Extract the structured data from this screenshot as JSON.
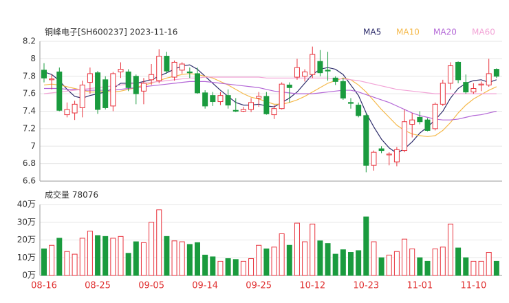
{
  "chart_data": [
    {
      "type": "candlestick",
      "title": "铜峰电子[SH600237] 2023-11-16",
      "up_color": "#e8323c",
      "down_color": "#1a9b3e",
      "grid": true,
      "ylim": [
        6.6,
        8.2
      ],
      "yticks": [
        8.2,
        8,
        7.8,
        7.6,
        7.4,
        7.2,
        7,
        6.8,
        6.6
      ],
      "open": [
        7.87,
        7.76,
        7.85,
        7.36,
        7.38,
        7.44,
        7.73,
        7.84,
        7.76,
        7.46,
        7.85,
        7.85,
        7.8,
        7.63,
        7.76,
        7.75,
        8.03,
        7.79,
        7.87,
        7.85,
        7.83,
        7.61,
        7.58,
        7.51,
        7.58,
        7.41,
        7.4,
        7.42,
        7.55,
        7.57,
        7.36,
        7.43,
        7.7,
        7.79,
        7.8,
        7.82,
        7.97,
        7.87,
        7.78,
        7.74,
        7.5,
        7.47,
        7.35,
        6.78,
        6.97,
        6.9,
        6.82,
        6.95,
        7.25,
        7.33,
        7.3,
        7.2,
        7.48,
        7.72,
        7.96,
        7.73,
        7.62,
        7.7,
        7.7,
        7.88
      ],
      "high": [
        7.95,
        7.82,
        7.9,
        7.5,
        7.52,
        7.75,
        7.9,
        7.86,
        7.8,
        7.85,
        7.96,
        7.88,
        7.82,
        7.78,
        7.94,
        8.11,
        8.08,
        7.98,
        7.96,
        7.9,
        7.9,
        7.64,
        7.62,
        7.62,
        7.65,
        7.55,
        7.45,
        7.55,
        7.62,
        7.62,
        7.47,
        7.73,
        7.73,
        8.0,
        7.88,
        8.14,
        8.1,
        8.08,
        7.8,
        7.78,
        7.55,
        7.5,
        7.38,
        6.95,
        7.0,
        6.93,
        6.99,
        7.42,
        7.38,
        7.4,
        7.32,
        7.5,
        7.76,
        7.96,
        7.97,
        7.82,
        7.72,
        7.74,
        8.0,
        7.89
      ],
      "low": [
        7.73,
        7.65,
        7.4,
        7.33,
        7.3,
        7.33,
        7.6,
        7.37,
        7.42,
        7.4,
        7.78,
        7.63,
        7.48,
        7.48,
        7.7,
        7.72,
        7.83,
        7.75,
        7.83,
        7.78,
        7.6,
        7.43,
        7.46,
        7.47,
        7.43,
        7.39,
        7.39,
        7.39,
        7.45,
        7.36,
        7.31,
        7.42,
        7.5,
        7.76,
        7.74,
        7.78,
        7.8,
        7.75,
        7.7,
        7.53,
        7.43,
        7.33,
        6.7,
        6.72,
        6.92,
        6.78,
        6.77,
        6.93,
        7.1,
        7.25,
        7.17,
        7.18,
        7.46,
        7.65,
        7.72,
        7.6,
        7.6,
        7.63,
        7.68,
        7.78
      ],
      "close": [
        7.78,
        7.77,
        7.41,
        7.42,
        7.48,
        7.7,
        7.83,
        7.42,
        7.44,
        7.83,
        7.88,
        7.67,
        7.6,
        7.72,
        7.82,
        8.03,
        7.86,
        7.96,
        7.94,
        7.84,
        7.61,
        7.46,
        7.51,
        7.58,
        7.47,
        7.4,
        7.42,
        7.5,
        7.57,
        7.37,
        7.43,
        7.71,
        7.67,
        7.9,
        7.85,
        8.05,
        7.84,
        7.86,
        7.74,
        7.55,
        7.49,
        7.35,
        6.78,
        6.93,
        6.95,
        6.91,
        6.96,
        7.28,
        7.3,
        7.28,
        7.18,
        7.48,
        7.72,
        7.92,
        7.76,
        7.62,
        7.66,
        7.71,
        7.83,
        7.8
      ],
      "series": [
        {
          "name": "MA5",
          "color": "#2e2d6b",
          "values": [
            7.85,
            7.82,
            7.75,
            7.65,
            7.57,
            7.55,
            7.58,
            7.6,
            7.62,
            7.66,
            7.72,
            7.72,
            7.72,
            7.74,
            7.76,
            7.8,
            7.84,
            7.88,
            7.92,
            7.93,
            7.88,
            7.8,
            7.72,
            7.64,
            7.57,
            7.5,
            7.47,
            7.47,
            7.48,
            7.46,
            7.45,
            7.5,
            7.55,
            7.62,
            7.72,
            7.82,
            7.88,
            7.9,
            7.88,
            7.82,
            7.7,
            7.58,
            7.38,
            7.22,
            7.08,
            6.98,
            6.92,
            6.97,
            7.05,
            7.15,
            7.22,
            7.3,
            7.4,
            7.55,
            7.66,
            7.72,
            7.75,
            7.76,
            7.73,
            7.76
          ]
        },
        {
          "name": "MA10",
          "color": "#f5b94a",
          "values": [
            7.7,
            7.71,
            7.7,
            7.68,
            7.66,
            7.64,
            7.62,
            7.62,
            7.63,
            7.62,
            7.63,
            7.65,
            7.67,
            7.7,
            7.72,
            7.75,
            7.78,
            7.8,
            7.82,
            7.83,
            7.82,
            7.8,
            7.78,
            7.74,
            7.7,
            7.65,
            7.6,
            7.56,
            7.54,
            7.51,
            7.48,
            7.48,
            7.5,
            7.53,
            7.57,
            7.62,
            7.67,
            7.72,
            7.75,
            7.78,
            7.76,
            7.7,
            7.62,
            7.52,
            7.42,
            7.33,
            7.24,
            7.18,
            7.14,
            7.12,
            7.11,
            7.12,
            7.18,
            7.27,
            7.38,
            7.47,
            7.54,
            7.59,
            7.64,
            7.68
          ]
        },
        {
          "name": "MA20",
          "color": "#b366d6",
          "values": [
            7.66,
            7.66,
            7.66,
            7.65,
            7.65,
            7.64,
            7.64,
            7.64,
            7.64,
            7.64,
            7.65,
            7.66,
            7.67,
            7.68,
            7.69,
            7.7,
            7.71,
            7.72,
            7.73,
            7.74,
            7.74,
            7.74,
            7.73,
            7.72,
            7.71,
            7.7,
            7.69,
            7.68,
            7.67,
            7.65,
            7.63,
            7.62,
            7.61,
            7.6,
            7.6,
            7.6,
            7.61,
            7.62,
            7.63,
            7.64,
            7.64,
            7.62,
            7.59,
            7.56,
            7.53,
            7.5,
            7.46,
            7.42,
            7.38,
            7.35,
            7.33,
            7.31,
            7.3,
            7.3,
            7.31,
            7.33,
            7.35,
            7.36,
            7.38,
            7.4
          ]
        },
        {
          "name": "MA60",
          "color": "#f2a3d6",
          "values": [
            7.6,
            7.61,
            7.62,
            7.63,
            7.64,
            7.65,
            7.66,
            7.67,
            7.68,
            7.69,
            7.7,
            7.71,
            7.72,
            7.72,
            7.73,
            7.74,
            7.75,
            7.76,
            7.77,
            7.78,
            7.78,
            7.79,
            7.79,
            7.79,
            7.79,
            7.79,
            7.79,
            7.79,
            7.79,
            7.78,
            7.78,
            7.78,
            7.78,
            7.78,
            7.78,
            7.78,
            7.78,
            7.78,
            7.77,
            7.77,
            7.76,
            7.75,
            7.73,
            7.71,
            7.69,
            7.67,
            7.65,
            7.64,
            7.63,
            7.62,
            7.61,
            7.6,
            7.6,
            7.6,
            7.6,
            7.6,
            7.6,
            7.6,
            7.6,
            7.6
          ]
        }
      ]
    },
    {
      "type": "volume",
      "title": "成交量",
      "last_value": 78076,
      "grid": true,
      "ylim": [
        0,
        40
      ],
      "yticks": [
        {
          "value": 40,
          "label": "40万"
        },
        {
          "value": 30,
          "label": "30万"
        },
        {
          "value": 20,
          "label": "20万"
        },
        {
          "value": 10,
          "label": "10万"
        },
        {
          "value": 0,
          "label": "0万"
        }
      ],
      "categories": [
        "08-16",
        null,
        null,
        null,
        null,
        null,
        null,
        "08-25",
        null,
        null,
        null,
        null,
        null,
        null,
        "09-05",
        null,
        null,
        null,
        null,
        null,
        null,
        "09-14",
        null,
        null,
        null,
        null,
        null,
        null,
        "09-25",
        null,
        null,
        null,
        null,
        null,
        null,
        "10-12",
        null,
        null,
        null,
        null,
        null,
        null,
        "10-23",
        null,
        null,
        null,
        null,
        null,
        null,
        "11-01",
        null,
        null,
        null,
        null,
        null,
        null,
        "11-10",
        null,
        null,
        null
      ],
      "category_color": "#e03030",
      "values": [
        15,
        17,
        21,
        13.5,
        12,
        21,
        25,
        22.5,
        22,
        21,
        22,
        12.5,
        19,
        18.5,
        30,
        37,
        22,
        19.5,
        19,
        17.5,
        18.5,
        11.5,
        10.5,
        8,
        9.5,
        9,
        8,
        9.5,
        17,
        15,
        16,
        23.5,
        17,
        29.5,
        19,
        29,
        19.5,
        18,
        12,
        14.5,
        13,
        14,
        33,
        19,
        10,
        11.5,
        13.5,
        20.5,
        15,
        10,
        8,
        15,
        16,
        29,
        15.5,
        10,
        8,
        8,
        13,
        8
      ]
    }
  ]
}
